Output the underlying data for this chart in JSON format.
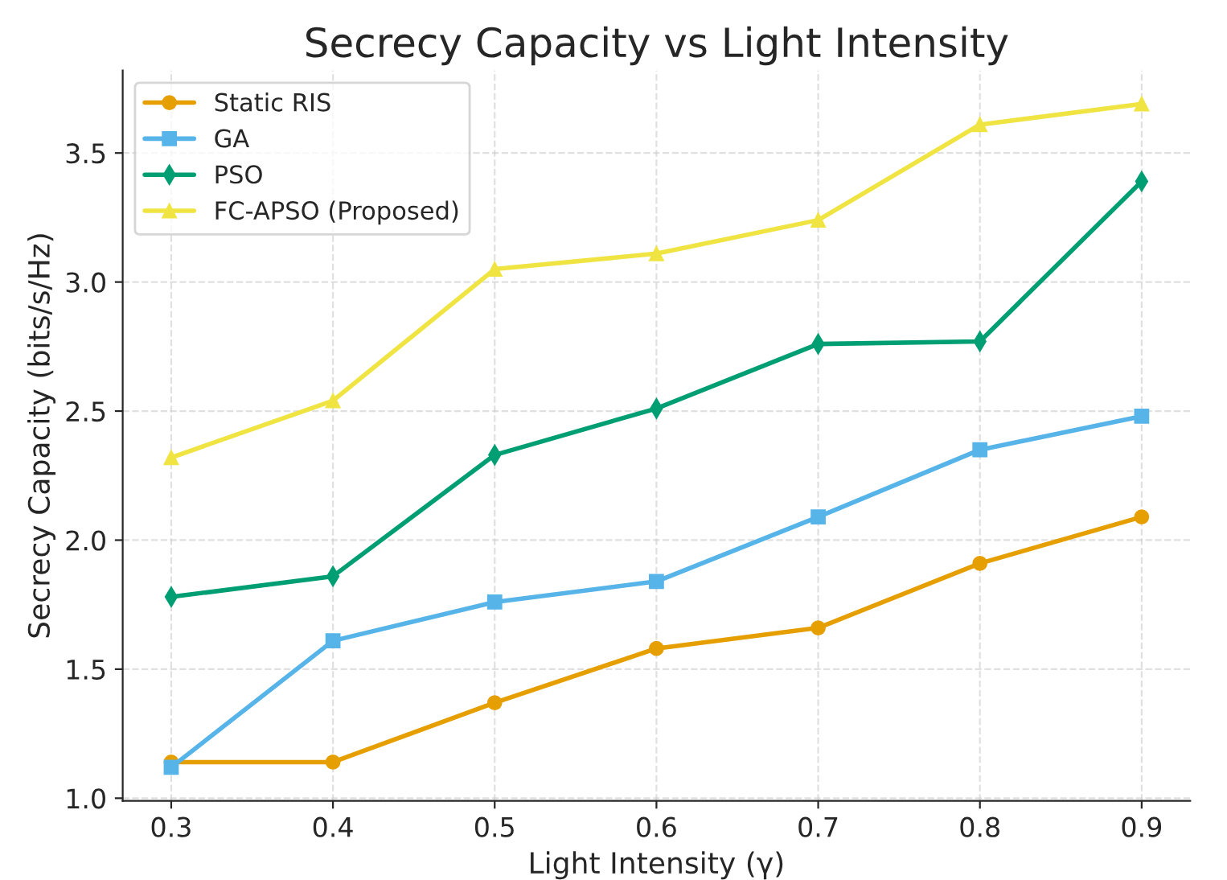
{
  "chart_data": {
    "type": "line",
    "title": "Secrecy Capacity vs Light Intensity",
    "xlabel": "Light Intensity (γ)",
    "ylabel": "Secrecy Capacity (bits/s/Hz)",
    "x": [
      0.3,
      0.4,
      0.5,
      0.6,
      0.7,
      0.8,
      0.9
    ],
    "series": [
      {
        "name": "Static RIS",
        "color": "#e69f00",
        "marker": "circle",
        "values": [
          1.14,
          1.14,
          1.37,
          1.58,
          1.66,
          1.91,
          2.09
        ]
      },
      {
        "name": "GA",
        "color": "#56b4e9",
        "marker": "square",
        "values": [
          1.12,
          1.61,
          1.76,
          1.84,
          2.09,
          2.35,
          2.48
        ]
      },
      {
        "name": "PSO",
        "color": "#009e73",
        "marker": "diamond",
        "values": [
          1.78,
          1.86,
          2.33,
          2.51,
          2.76,
          2.77,
          3.39
        ]
      },
      {
        "name": "FC-APSO (Proposed)",
        "color": "#f0e442",
        "marker": "triangle",
        "values": [
          2.32,
          2.54,
          3.05,
          3.11,
          3.24,
          3.61,
          3.69
        ]
      }
    ],
    "xlim": [
      0.27,
      0.93
    ],
    "ylim": [
      0.99,
      3.82
    ],
    "xticks": [
      0.3,
      0.4,
      0.5,
      0.6,
      0.7,
      0.8,
      0.9
    ],
    "yticks": [
      {
        "value": 1,
        "label": "1.0"
      },
      1.5,
      {
        "value": 2,
        "label": "2.0"
      },
      2.5,
      {
        "value": 3,
        "label": "3.0"
      },
      3.5
    ],
    "grid": true,
    "legend": "top left",
    "line_style": "solid"
  }
}
